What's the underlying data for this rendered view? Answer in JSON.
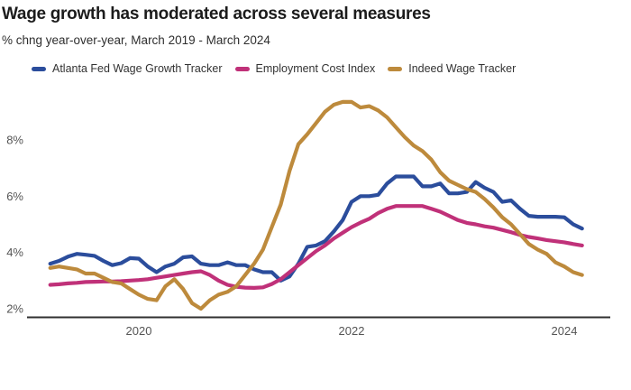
{
  "header": {
    "title": "Wage growth has moderated across several measures",
    "subtitle": "% chng year-over-year, March 2019 - March 2024"
  },
  "legend": {
    "items": [
      {
        "label": "Atlanta Fed Wage Growth Tracker",
        "color": "#2b4d9c"
      },
      {
        "label": "Employment Cost Index",
        "color": "#c03179"
      },
      {
        "label": "Indeed Wage Tracker",
        "color": "#bd8a3c"
      }
    ]
  },
  "chart_data": {
    "type": "line",
    "title": "Wage growth has moderated across several measures",
    "subtitle": "% chng year-over-year, March 2019 - March 2024",
    "x_unit": "month",
    "start_month": "2019-03",
    "end_month": "2024-03",
    "grid": false,
    "legend_position": "top",
    "ylim": [
      1.7,
      9.9
    ],
    "y_ticks": [
      {
        "label": "2%",
        "value": 2
      },
      {
        "label": "4%",
        "value": 4
      },
      {
        "label": "6%",
        "value": 6
      },
      {
        "label": "8%",
        "value": 8
      }
    ],
    "x_ticks": [
      {
        "label": "2020",
        "month_index": 10
      },
      {
        "label": "2022",
        "month_index": 34
      },
      {
        "label": "2024",
        "month_index": 58
      }
    ],
    "series": [
      {
        "name": "Atlanta Fed Wage Growth Tracker",
        "color": "#2b4d9c",
        "values": [
          3.6,
          3.7,
          3.85,
          3.95,
          3.92,
          3.88,
          3.7,
          3.55,
          3.62,
          3.8,
          3.78,
          3.5,
          3.3,
          3.5,
          3.6,
          3.83,
          3.86,
          3.6,
          3.55,
          3.55,
          3.65,
          3.55,
          3.55,
          3.4,
          3.3,
          3.3,
          3.0,
          3.15,
          3.6,
          4.2,
          4.25,
          4.4,
          4.75,
          5.15,
          5.8,
          6.0,
          6.0,
          6.05,
          6.45,
          6.7,
          6.7,
          6.7,
          6.35,
          6.35,
          6.45,
          6.1,
          6.1,
          6.15,
          6.5,
          6.3,
          6.15,
          5.8,
          5.85,
          5.55,
          5.3,
          5.27,
          5.27,
          5.27,
          5.25,
          5.0,
          4.85
        ]
      },
      {
        "name": "Employment Cost Index",
        "color": "#c03179",
        "values": [
          2.85,
          2.87,
          2.9,
          2.92,
          2.95,
          2.96,
          2.97,
          2.97,
          2.98,
          3.0,
          3.02,
          3.05,
          3.1,
          3.15,
          3.2,
          3.25,
          3.3,
          3.33,
          3.2,
          3.0,
          2.85,
          2.78,
          2.75,
          2.74,
          2.76,
          2.88,
          3.05,
          3.3,
          3.55,
          3.8,
          4.05,
          4.25,
          4.5,
          4.7,
          4.9,
          5.06,
          5.2,
          5.4,
          5.55,
          5.65,
          5.65,
          5.65,
          5.65,
          5.55,
          5.45,
          5.3,
          5.15,
          5.05,
          5.0,
          4.93,
          4.88,
          4.8,
          4.72,
          4.62,
          4.55,
          4.5,
          4.44,
          4.4,
          4.36,
          4.3,
          4.25
        ]
      },
      {
        "name": "Indeed Wage Tracker",
        "color": "#bd8a3c",
        "values": [
          3.45,
          3.5,
          3.45,
          3.4,
          3.25,
          3.25,
          3.1,
          2.95,
          2.9,
          2.7,
          2.5,
          2.35,
          2.3,
          2.8,
          3.05,
          2.7,
          2.2,
          2.0,
          2.3,
          2.5,
          2.6,
          2.8,
          3.2,
          3.6,
          4.1,
          4.9,
          5.7,
          6.9,
          7.85,
          8.2,
          8.6,
          9.0,
          9.25,
          9.35,
          9.35,
          9.15,
          9.2,
          9.05,
          8.8,
          8.45,
          8.1,
          7.8,
          7.6,
          7.3,
          6.85,
          6.55,
          6.4,
          6.25,
          6.15,
          5.9,
          5.6,
          5.25,
          5.0,
          4.65,
          4.3,
          4.1,
          3.95,
          3.65,
          3.5,
          3.3,
          3.2
        ]
      }
    ]
  }
}
